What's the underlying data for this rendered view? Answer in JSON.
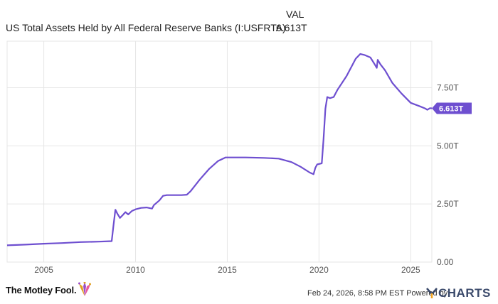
{
  "header": {
    "column_label": "VAL",
    "series_name": "US Total Assets Held by All Federal Reserve Banks (I:USFRTA)",
    "series_value": "6.613T"
  },
  "chart_data": {
    "type": "line",
    "title": "US Total Assets Held by All Federal Reserve Banks (I:USFRTA)",
    "xlabel": "",
    "ylabel": "",
    "x_ticks": [
      "2005",
      "2010",
      "2015",
      "2020",
      "2025"
    ],
    "y_ticks": [
      "0.00",
      "2.50T",
      "5.00T",
      "7.50T"
    ],
    "ylim": [
      0,
      9.5
    ],
    "xlim": [
      2003.0,
      2026.15
    ],
    "grid": true,
    "current_value_label": "6.613T",
    "line_color": "#6e4fd0",
    "series": [
      {
        "name": "US Total Assets Held by All Federal Reserve Banks",
        "points": [
          [
            2003.0,
            0.72
          ],
          [
            2004.0,
            0.75
          ],
          [
            2005.0,
            0.79
          ],
          [
            2006.0,
            0.82
          ],
          [
            2007.0,
            0.86
          ],
          [
            2008.0,
            0.88
          ],
          [
            2008.7,
            0.9
          ],
          [
            2008.8,
            1.6
          ],
          [
            2008.9,
            2.25
          ],
          [
            2009.0,
            2.1
          ],
          [
            2009.15,
            1.9
          ],
          [
            2009.3,
            2.02
          ],
          [
            2009.45,
            2.15
          ],
          [
            2009.6,
            2.05
          ],
          [
            2009.8,
            2.2
          ],
          [
            2010.0,
            2.27
          ],
          [
            2010.3,
            2.33
          ],
          [
            2010.6,
            2.35
          ],
          [
            2010.9,
            2.3
          ],
          [
            2011.0,
            2.45
          ],
          [
            2011.3,
            2.65
          ],
          [
            2011.5,
            2.85
          ],
          [
            2011.7,
            2.88
          ],
          [
            2012.0,
            2.88
          ],
          [
            2012.5,
            2.88
          ],
          [
            2012.8,
            2.9
          ],
          [
            2013.0,
            3.05
          ],
          [
            2013.5,
            3.55
          ],
          [
            2014.0,
            4.0
          ],
          [
            2014.5,
            4.35
          ],
          [
            2014.9,
            4.5
          ],
          [
            2015.0,
            4.5
          ],
          [
            2016.0,
            4.5
          ],
          [
            2017.0,
            4.48
          ],
          [
            2017.8,
            4.45
          ],
          [
            2018.5,
            4.3
          ],
          [
            2019.0,
            4.1
          ],
          [
            2019.5,
            3.85
          ],
          [
            2019.7,
            3.78
          ],
          [
            2019.8,
            4.05
          ],
          [
            2019.9,
            4.2
          ],
          [
            2020.15,
            4.25
          ],
          [
            2020.25,
            5.3
          ],
          [
            2020.35,
            6.6
          ],
          [
            2020.45,
            7.1
          ],
          [
            2020.6,
            7.05
          ],
          [
            2020.8,
            7.1
          ],
          [
            2021.0,
            7.4
          ],
          [
            2021.5,
            8.0
          ],
          [
            2022.0,
            8.75
          ],
          [
            2022.25,
            8.95
          ],
          [
            2022.5,
            8.9
          ],
          [
            2022.8,
            8.8
          ],
          [
            2023.0,
            8.55
          ],
          [
            2023.15,
            8.35
          ],
          [
            2023.2,
            8.7
          ],
          [
            2023.35,
            8.5
          ],
          [
            2023.6,
            8.25
          ],
          [
            2024.0,
            7.7
          ],
          [
            2024.5,
            7.25
          ],
          [
            2025.0,
            6.85
          ],
          [
            2025.5,
            6.7
          ],
          [
            2025.8,
            6.6
          ],
          [
            2025.9,
            6.55
          ],
          [
            2026.05,
            6.62
          ],
          [
            2026.15,
            6.613
          ]
        ]
      }
    ]
  },
  "footer": {
    "brand": "The Motley Fool.",
    "credit": "Feb 24, 2026, 8:58 PM EST  Powered by",
    "ycharts": "CHARTS"
  }
}
